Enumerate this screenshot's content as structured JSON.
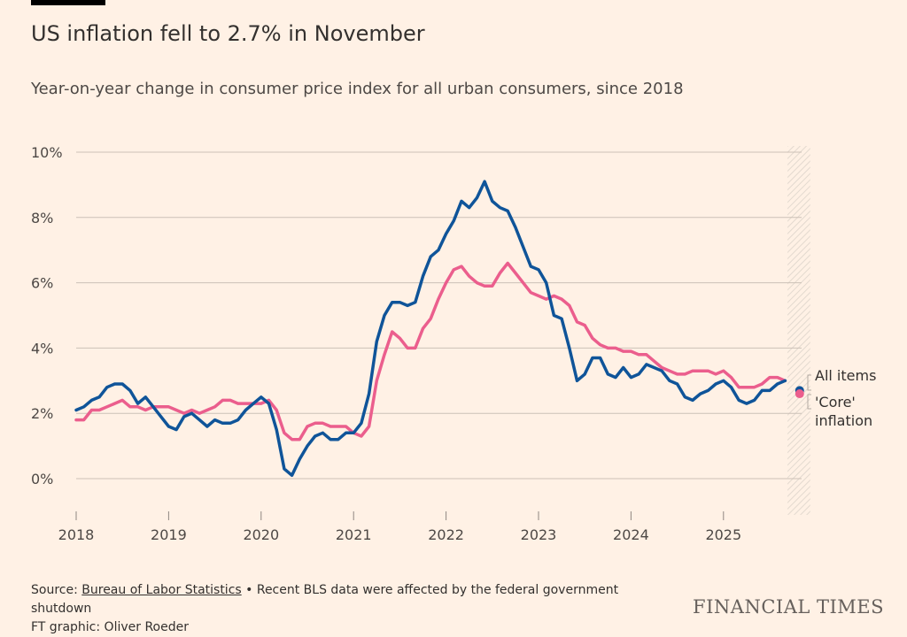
{
  "title": "US inflation fell to 2.7% in November",
  "subtitle": "Year-on-year change in consumer price index for all urban consumers, since 2018",
  "source": {
    "prefix": "Source: ",
    "link": "Bureau of Labor Statistics",
    "note": " • Recent BLS data were affected by the federal government shutdown",
    "credit": "FT graphic: Oliver Roeder"
  },
  "brand": "FINANCIAL TIMES",
  "chart_data": {
    "type": "line",
    "title": "",
    "xlabel": "",
    "ylabel": "",
    "x_start": "2018-01",
    "x_frequency": "monthly",
    "x_ticks": [
      "2018",
      "2019",
      "2020",
      "2021",
      "2022",
      "2023",
      "2024",
      "2025"
    ],
    "y_ticks": [
      "0%",
      "2%",
      "4%",
      "6%",
      "8%",
      "10%"
    ],
    "y_tick_values": [
      0,
      2,
      4,
      6,
      8,
      10
    ],
    "ylim": [
      -1,
      10
    ],
    "grid": true,
    "shaded_period": [
      "2025-10",
      "2025-11"
    ],
    "series": [
      {
        "name": "All items",
        "color": "#0f5499",
        "values": [
          2.1,
          2.2,
          2.4,
          2.5,
          2.8,
          2.9,
          2.9,
          2.7,
          2.3,
          2.5,
          2.2,
          1.9,
          1.6,
          1.5,
          1.9,
          2.0,
          1.8,
          1.6,
          1.8,
          1.7,
          1.7,
          1.8,
          2.1,
          2.3,
          2.5,
          2.3,
          1.5,
          0.3,
          0.1,
          0.6,
          1.0,
          1.3,
          1.4,
          1.2,
          1.2,
          1.4,
          1.4,
          1.7,
          2.6,
          4.2,
          5.0,
          5.4,
          5.4,
          5.3,
          5.4,
          6.2,
          6.8,
          7.0,
          7.5,
          7.9,
          8.5,
          8.3,
          8.6,
          9.1,
          8.5,
          8.3,
          8.2,
          7.7,
          7.1,
          6.5,
          6.4,
          6.0,
          5.0,
          4.9,
          4.0,
          3.0,
          3.2,
          3.7,
          3.7,
          3.2,
          3.1,
          3.4,
          3.1,
          3.2,
          3.5,
          3.4,
          3.3,
          3.0,
          2.9,
          2.5,
          2.4,
          2.6,
          2.7,
          2.9,
          3.0,
          2.8,
          2.4,
          2.3,
          2.4,
          2.7,
          2.7,
          2.9,
          3.0
        ],
        "latest": {
          "period": "2025-11",
          "value": 2.7
        }
      },
      {
        "name": "'Core' inflation",
        "color": "#eb5e8d",
        "values": [
          1.8,
          1.8,
          2.1,
          2.1,
          2.2,
          2.3,
          2.4,
          2.2,
          2.2,
          2.1,
          2.2,
          2.2,
          2.2,
          2.1,
          2.0,
          2.1,
          2.0,
          2.1,
          2.2,
          2.4,
          2.4,
          2.3,
          2.3,
          2.3,
          2.3,
          2.4,
          2.1,
          1.4,
          1.2,
          1.2,
          1.6,
          1.7,
          1.7,
          1.6,
          1.6,
          1.6,
          1.4,
          1.3,
          1.6,
          3.0,
          3.8,
          4.5,
          4.3,
          4.0,
          4.0,
          4.6,
          4.9,
          5.5,
          6.0,
          6.4,
          6.5,
          6.2,
          6.0,
          5.9,
          5.9,
          6.3,
          6.6,
          6.3,
          6.0,
          5.7,
          5.6,
          5.5,
          5.6,
          5.5,
          5.3,
          4.8,
          4.7,
          4.3,
          4.1,
          4.0,
          4.0,
          3.9,
          3.9,
          3.8,
          3.8,
          3.6,
          3.4,
          3.3,
          3.2,
          3.2,
          3.3,
          3.3,
          3.3,
          3.2,
          3.3,
          3.1,
          2.8,
          2.8,
          2.8,
          2.9,
          3.1,
          3.1,
          3.0
        ],
        "latest": {
          "period": "2025-11",
          "value": 2.6
        }
      }
    ],
    "legend": {
      "placement": "right",
      "labels": [
        "All items",
        "'Core'",
        "inflation"
      ]
    }
  }
}
